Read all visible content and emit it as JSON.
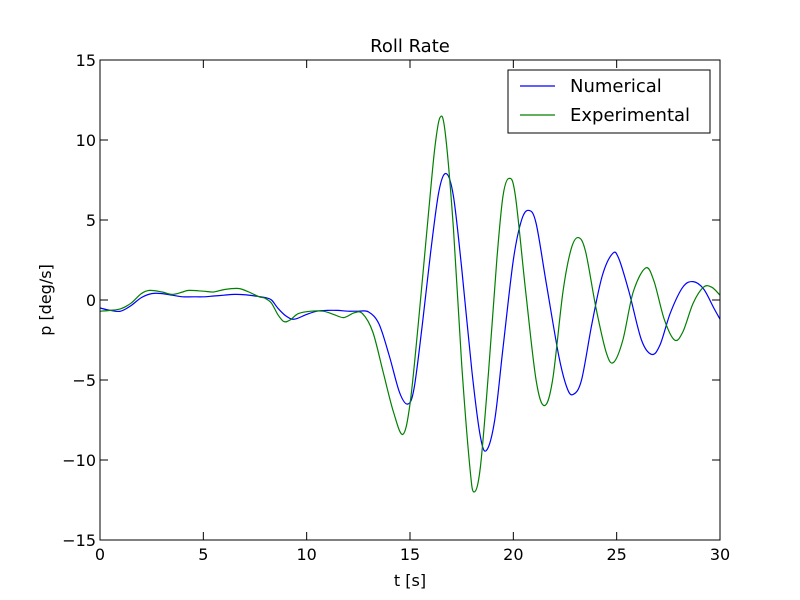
{
  "chart_data": {
    "type": "line",
    "title": "Roll Rate",
    "xlabel": "t [s]",
    "ylabel": "p [deg/s]",
    "xlim": [
      0,
      30
    ],
    "ylim": [
      -15,
      15
    ],
    "xticks": [
      0,
      5,
      10,
      15,
      20,
      25,
      30
    ],
    "xtick_labels": [
      "0",
      "5",
      "10",
      "15",
      "20",
      "25",
      "30"
    ],
    "yticks": [
      -15,
      -10,
      -5,
      0,
      5,
      10,
      15
    ],
    "ytick_labels": [
      "−15",
      "−10",
      "−5",
      "0",
      "5",
      "10",
      "15"
    ],
    "grid": false,
    "legend_position": "top-right",
    "series": [
      {
        "name": "Numerical",
        "color": "#0000ff",
        "points": [
          [
            0,
            -0.5
          ],
          [
            0.5,
            -0.65
          ],
          [
            1.0,
            -0.7
          ],
          [
            1.5,
            -0.35
          ],
          [
            2.0,
            0.15
          ],
          [
            2.5,
            0.4
          ],
          [
            3.0,
            0.4
          ],
          [
            3.5,
            0.3
          ],
          [
            4.0,
            0.2
          ],
          [
            4.5,
            0.2
          ],
          [
            5.0,
            0.2
          ],
          [
            5.5,
            0.25
          ],
          [
            6.0,
            0.3
          ],
          [
            6.5,
            0.35
          ],
          [
            7.0,
            0.33
          ],
          [
            7.5,
            0.25
          ],
          [
            8.0,
            0.15
          ],
          [
            8.3,
            0.0
          ],
          [
            8.6,
            -0.5
          ],
          [
            9.0,
            -1.0
          ],
          [
            9.4,
            -1.2
          ],
          [
            10.0,
            -0.9
          ],
          [
            10.5,
            -0.7
          ],
          [
            11.0,
            -0.65
          ],
          [
            11.5,
            -0.65
          ],
          [
            12.0,
            -0.7
          ],
          [
            12.5,
            -0.7
          ],
          [
            13.0,
            -0.75
          ],
          [
            13.5,
            -1.5
          ],
          [
            14.0,
            -3.5
          ],
          [
            14.5,
            -5.8
          ],
          [
            14.9,
            -6.5
          ],
          [
            15.2,
            -5.5
          ],
          [
            15.6,
            -1.5
          ],
          [
            16.0,
            3.0
          ],
          [
            16.4,
            6.8
          ],
          [
            16.75,
            7.9
          ],
          [
            17.1,
            6.5
          ],
          [
            17.5,
            2.0
          ],
          [
            18.0,
            -4.5
          ],
          [
            18.4,
            -8.5
          ],
          [
            18.7,
            -9.4
          ],
          [
            19.1,
            -7.5
          ],
          [
            19.5,
            -3.0
          ],
          [
            20.0,
            2.5
          ],
          [
            20.4,
            5.0
          ],
          [
            20.75,
            5.6
          ],
          [
            21.1,
            4.8
          ],
          [
            21.6,
            1.0
          ],
          [
            22.2,
            -3.5
          ],
          [
            22.6,
            -5.5
          ],
          [
            22.9,
            -5.9
          ],
          [
            23.3,
            -5.0
          ],
          [
            23.8,
            -1.5
          ],
          [
            24.3,
            1.5
          ],
          [
            24.8,
            2.9
          ],
          [
            25.1,
            2.6
          ],
          [
            25.6,
            0.5
          ],
          [
            26.2,
            -2.5
          ],
          [
            26.7,
            -3.4
          ],
          [
            27.1,
            -2.8
          ],
          [
            27.6,
            -0.8
          ],
          [
            28.2,
            0.8
          ],
          [
            28.7,
            1.15
          ],
          [
            29.2,
            0.7
          ],
          [
            29.7,
            -0.5
          ],
          [
            30.0,
            -1.2
          ]
        ]
      },
      {
        "name": "Experimental",
        "color": "#008000",
        "points": [
          [
            0,
            -0.7
          ],
          [
            0.5,
            -0.65
          ],
          [
            1.0,
            -0.55
          ],
          [
            1.5,
            -0.2
          ],
          [
            2.0,
            0.4
          ],
          [
            2.4,
            0.6
          ],
          [
            3.0,
            0.5
          ],
          [
            3.5,
            0.35
          ],
          [
            4.0,
            0.5
          ],
          [
            4.3,
            0.6
          ],
          [
            5.0,
            0.55
          ],
          [
            5.5,
            0.5
          ],
          [
            6.0,
            0.65
          ],
          [
            6.7,
            0.72
          ],
          [
            7.2,
            0.5
          ],
          [
            7.7,
            0.2
          ],
          [
            8.0,
            0.1
          ],
          [
            8.3,
            -0.2
          ],
          [
            8.6,
            -0.9
          ],
          [
            8.9,
            -1.35
          ],
          [
            9.2,
            -1.25
          ],
          [
            9.6,
            -0.85
          ],
          [
            10.2,
            -0.7
          ],
          [
            10.8,
            -0.7
          ],
          [
            11.3,
            -0.9
          ],
          [
            11.8,
            -1.1
          ],
          [
            12.3,
            -0.8
          ],
          [
            12.7,
            -0.85
          ],
          [
            13.2,
            -2.0
          ],
          [
            13.7,
            -4.5
          ],
          [
            14.2,
            -7.0
          ],
          [
            14.65,
            -8.4
          ],
          [
            15.0,
            -6.5
          ],
          [
            15.4,
            -1.5
          ],
          [
            15.9,
            5.5
          ],
          [
            16.2,
            9.5
          ],
          [
            16.45,
            11.4
          ],
          [
            16.7,
            10.5
          ],
          [
            17.1,
            4.5
          ],
          [
            17.5,
            -4.0
          ],
          [
            17.9,
            -10.5
          ],
          [
            18.1,
            -12.0
          ],
          [
            18.4,
            -10.5
          ],
          [
            18.8,
            -4.5
          ],
          [
            19.2,
            2.5
          ],
          [
            19.5,
            6.5
          ],
          [
            19.8,
            7.6
          ],
          [
            20.1,
            6.5
          ],
          [
            20.6,
            0.5
          ],
          [
            21.1,
            -5.0
          ],
          [
            21.5,
            -6.6
          ],
          [
            21.9,
            -5.0
          ],
          [
            22.4,
            0.5
          ],
          [
            22.8,
            3.2
          ],
          [
            23.15,
            3.9
          ],
          [
            23.5,
            3.0
          ],
          [
            24.0,
            -0.5
          ],
          [
            24.5,
            -3.3
          ],
          [
            24.85,
            -3.9
          ],
          [
            25.3,
            -2.5
          ],
          [
            25.8,
            0.5
          ],
          [
            26.4,
            2.0
          ],
          [
            26.8,
            1.2
          ],
          [
            27.3,
            -1.2
          ],
          [
            27.8,
            -2.5
          ],
          [
            28.2,
            -2.0
          ],
          [
            28.7,
            -0.2
          ],
          [
            29.2,
            0.8
          ],
          [
            29.6,
            0.8
          ],
          [
            30.0,
            0.3
          ]
        ]
      }
    ]
  }
}
